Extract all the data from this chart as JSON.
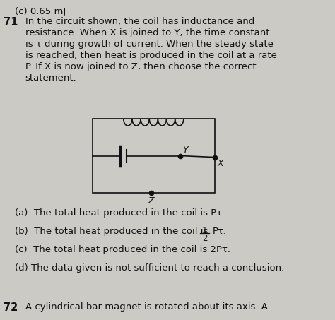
{
  "bg_color": "#cccac5",
  "bg_color2": "#b8b5b0",
  "text_color": "#111111",
  "title_num": "71",
  "top_label": "(c) 0.65 mJ",
  "question_line1": "In the circuit shown, the coil has inductance and",
  "question_line2": "resistance. When X is joined to Y, the time constant",
  "question_line3": "is τ during growth of current. When the steady state",
  "question_line4": "is reached, then heat is produced in the coil at a rate",
  "question_line5": "P. If X is now joined to Z, then choose the correct",
  "question_line6": "statement.",
  "opt_a": "(a)  The total heat produced in the coil is Pτ.",
  "opt_b_pre": "(b)  The total heat produced in the coil is ",
  "opt_b_post": "Pτ.",
  "opt_c": "(c)  The total heat produced in the coil is 2Pτ.",
  "opt_d": "(d) The data given is not sufficient to reach a conclusion.",
  "bottom_label": "72",
  "bottom_text": "A cylindrical bar magnet is rotated about its axis. A"
}
